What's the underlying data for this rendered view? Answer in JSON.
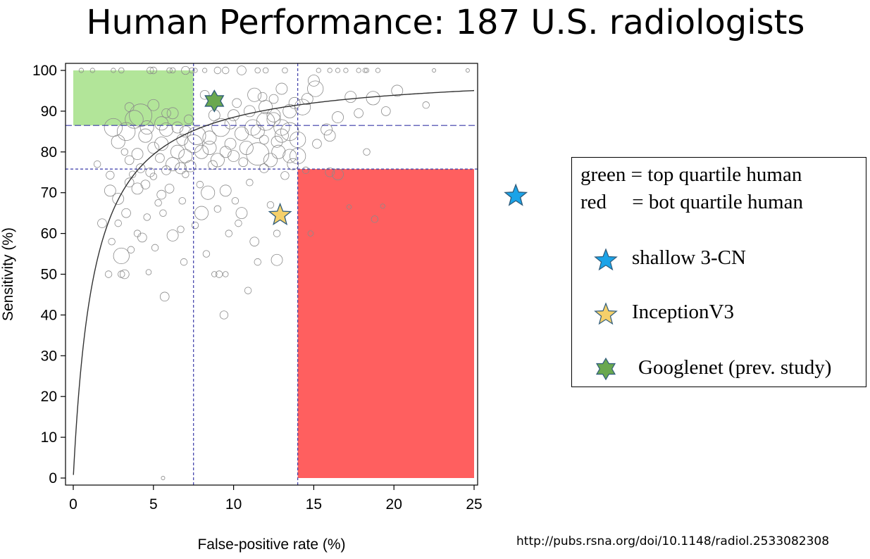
{
  "title": "Human Performance:  187 U.S. radiologists",
  "source": "http://pubs.rsna.org/doi/10.1148/radiol.2533082308",
  "legend": {
    "green_line": "green = top quartile human",
    "red_line": "red     = bot quartile human",
    "items": [
      {
        "label": "shallow 3-CN",
        "color": "#1aa3e8",
        "icon": "star-5-icon"
      },
      {
        "label": "InceptionV3",
        "color": "#f5d06a",
        "icon": "star-5-icon"
      },
      {
        "label": "Googlenet (prev. study)",
        "color": "#6aa84f",
        "icon": "star-6-icon"
      }
    ]
  },
  "chart_data": {
    "type": "scatter",
    "xlabel": "False-positive rate (%)",
    "ylabel": "Sensitivity (%)",
    "xlim": [
      0,
      25
    ],
    "ylim": [
      0,
      100
    ],
    "xticks": [
      0,
      5,
      10,
      15,
      20,
      25
    ],
    "yticks": [
      0,
      10,
      20,
      30,
      40,
      50,
      60,
      70,
      80,
      90,
      100
    ],
    "colors": {
      "top_quartile": "#b2e599",
      "bottom_quartile": "#ff5f5f",
      "guide": "#3a3aa8",
      "curve": "#333333"
    },
    "top_quartile_region": {
      "x": [
        0,
        7.5
      ],
      "y": [
        86.5,
        100
      ]
    },
    "bottom_quartile_region": {
      "x": [
        14,
        25
      ],
      "y": [
        0,
        75.8
      ]
    },
    "reference_lines": {
      "vertical": [
        7.5,
        14
      ],
      "horizontal": [
        86.5,
        75.8
      ]
    },
    "roc_curve_scale": 1.3,
    "models": [
      {
        "name": "shallow 3-CN",
        "x": 27.6,
        "y": 69.2,
        "color": "#1aa3e8",
        "shape": "star5"
      },
      {
        "name": "InceptionV3",
        "x": 12.9,
        "y": 64.5,
        "color": "#f5d06a",
        "shape": "star5"
      },
      {
        "name": "Googlenet (prev. study)",
        "x": 8.8,
        "y": 92.5,
        "color": "#6aa84f",
        "shape": "star6"
      }
    ],
    "radiologists": [
      [
        0.5,
        100,
        1
      ],
      [
        2.5,
        100,
        1
      ],
      [
        3,
        100,
        1.2
      ],
      [
        4.8,
        100,
        1.5
      ],
      [
        5,
        100,
        1.5
      ],
      [
        6,
        100,
        1.2
      ],
      [
        6.2,
        100,
        1.2
      ],
      [
        7,
        100,
        1.8
      ],
      [
        7.4,
        100,
        1.2
      ],
      [
        7.6,
        100,
        1
      ],
      [
        9,
        100,
        1.5
      ],
      [
        9.5,
        100,
        1.5
      ],
      [
        10.5,
        100,
        2
      ],
      [
        11.5,
        100,
        1.2
      ],
      [
        12,
        100,
        1.2
      ],
      [
        15.3,
        100,
        1
      ],
      [
        16,
        100,
        1
      ],
      [
        17,
        100,
        1
      ],
      [
        17.8,
        100,
        1
      ],
      [
        18.2,
        100,
        1
      ],
      [
        18.3,
        100,
        1
      ],
      [
        22.5,
        100,
        0.8
      ],
      [
        24.6,
        100,
        0.8
      ],
      [
        15,
        97.5,
        2.5
      ],
      [
        15.1,
        95.5,
        3.5
      ],
      [
        11.3,
        94,
        3
      ],
      [
        12.5,
        93,
        2
      ],
      [
        17.3,
        93.5,
        2.5
      ],
      [
        18.7,
        93.2,
        3
      ],
      [
        13.8,
        92,
        2.5
      ],
      [
        8.2,
        94,
        2
      ],
      [
        5,
        91.5,
        2.5
      ],
      [
        6.2,
        89.5,
        2.5
      ],
      [
        4.2,
        89,
        5
      ],
      [
        3.8,
        88,
        4
      ],
      [
        5.5,
        87,
        3
      ],
      [
        4.6,
        86,
        3
      ],
      [
        3.3,
        85,
        4
      ],
      [
        5.8,
        85.5,
        3
      ],
      [
        6.5,
        86,
        2.5
      ],
      [
        7,
        85,
        2.5
      ],
      [
        7.7,
        84,
        4
      ],
      [
        8.5,
        83.5,
        3
      ],
      [
        9.2,
        86,
        4
      ],
      [
        9.8,
        87,
        2.5
      ],
      [
        10.5,
        84.5,
        3
      ],
      [
        11.2,
        86,
        3.5
      ],
      [
        11.5,
        85,
        3
      ],
      [
        12,
        87.5,
        4
      ],
      [
        12.5,
        88,
        3
      ],
      [
        13,
        86,
        3.5
      ],
      [
        13.5,
        85,
        4
      ],
      [
        13,
        84,
        3
      ],
      [
        14,
        83,
        3.5
      ],
      [
        12.5,
        89,
        3
      ],
      [
        12,
        91,
        3
      ],
      [
        13.5,
        90,
        3
      ],
      [
        14.3,
        91,
        3.5
      ],
      [
        10,
        89,
        2.5
      ],
      [
        11,
        90,
        2.5
      ],
      [
        15.8,
        85.5,
        2.5
      ],
      [
        16.5,
        88.5,
        2.5
      ],
      [
        16,
        84,
        2.5
      ],
      [
        22,
        91.5,
        1.5
      ],
      [
        18.3,
        80,
        1.5
      ],
      [
        2.5,
        86,
        4
      ],
      [
        2.8,
        82.5,
        3
      ],
      [
        4.5,
        84,
        3
      ],
      [
        5,
        81,
        2.5
      ],
      [
        5.5,
        82,
        3
      ],
      [
        6.5,
        80,
        3
      ],
      [
        7,
        79,
        3
      ],
      [
        7.5,
        82,
        4
      ],
      [
        8,
        80,
        3
      ],
      [
        8.5,
        81,
        3
      ],
      [
        9,
        78,
        3
      ],
      [
        9.5,
        80,
        2.5
      ],
      [
        10,
        79,
        2.5
      ],
      [
        10.8,
        81,
        3
      ],
      [
        11.5,
        79.5,
        5
      ],
      [
        12.3,
        78,
        3
      ],
      [
        12.8,
        80,
        3
      ],
      [
        13.5,
        79,
        3
      ],
      [
        13.7,
        77,
        2.5
      ],
      [
        14,
        79,
        3.5
      ],
      [
        6.2,
        77,
        3
      ],
      [
        6.7,
        76,
        2.5
      ],
      [
        7.3,
        76.5,
        2.5
      ],
      [
        3.5,
        78,
        2
      ],
      [
        3.2,
        80,
        1.5
      ],
      [
        4.2,
        76,
        2
      ],
      [
        1.5,
        77,
        1.5
      ],
      [
        4.8,
        75,
        2
      ],
      [
        5.8,
        75.5,
        2
      ],
      [
        7,
        74.5,
        1.5
      ],
      [
        3.5,
        72.5,
        2
      ],
      [
        4,
        71,
        2.5
      ],
      [
        2.3,
        70.5,
        2.5
      ],
      [
        5.5,
        69.5,
        2
      ],
      [
        8.4,
        70,
        3
      ],
      [
        9.5,
        70.5,
        2.5
      ],
      [
        11,
        72.5,
        1.5
      ],
      [
        16,
        75,
        2
      ],
      [
        16.5,
        74.5,
        2.5
      ],
      [
        14.5,
        75.5,
        1.5
      ],
      [
        4.5,
        72,
        2
      ],
      [
        5,
        74,
        1.5
      ],
      [
        2.8,
        68.5,
        2.5
      ],
      [
        3.3,
        65,
        2
      ],
      [
        5.3,
        67.5,
        1.5
      ],
      [
        1.8,
        62.5,
        2
      ],
      [
        2.8,
        62.5,
        1.5
      ],
      [
        4,
        60,
        1.5
      ],
      [
        8,
        65,
        3
      ],
      [
        9,
        66,
        1.5
      ],
      [
        10.5,
        65,
        2.5
      ],
      [
        6.7,
        61,
        1.5
      ],
      [
        6.2,
        59.5,
        2.5
      ],
      [
        4.3,
        59,
        2
      ],
      [
        9.7,
        60,
        1.5
      ],
      [
        11.3,
        58,
        2
      ],
      [
        12.7,
        60,
        1.5
      ],
      [
        14.8,
        60,
        1.2
      ],
      [
        17.2,
        66.5,
        1
      ],
      [
        18.8,
        63.5,
        1.5
      ],
      [
        19.3,
        66.7,
        1
      ],
      [
        3,
        54.5,
        3.5
      ],
      [
        12.7,
        53.5,
        2.5
      ],
      [
        2.2,
        50,
        1.5
      ],
      [
        3,
        50,
        1.5
      ],
      [
        3.2,
        50,
        2
      ],
      [
        4.7,
        50.5,
        1.2
      ],
      [
        8.8,
        50,
        1.2
      ],
      [
        9.1,
        50,
        1.5
      ],
      [
        9.5,
        50,
        1.2
      ],
      [
        5.7,
        44.5,
        2
      ],
      [
        9.4,
        40,
        1.8
      ],
      [
        5.6,
        0,
        0.8
      ],
      [
        1.2,
        100,
        1
      ],
      [
        8.2,
        100,
        1
      ],
      [
        13.2,
        100,
        1.2
      ],
      [
        16.5,
        100,
        1
      ],
      [
        19,
        100,
        1
      ],
      [
        3.5,
        91,
        2
      ],
      [
        5.8,
        89.5,
        2
      ],
      [
        7.2,
        88,
        2
      ],
      [
        8.8,
        89,
        2.5
      ],
      [
        10.2,
        92,
        2
      ],
      [
        11.8,
        93.5,
        2
      ],
      [
        13,
        95.5,
        2.5
      ],
      [
        14.6,
        93,
        2.5
      ],
      [
        20.2,
        95,
        2.5
      ],
      [
        19.5,
        90,
        2
      ],
      [
        17.8,
        89.5,
        2
      ],
      [
        6.8,
        83,
        2.5
      ],
      [
        9.8,
        82,
        2.5
      ],
      [
        11.9,
        83,
        2
      ],
      [
        12.7,
        82.5,
        2.5
      ],
      [
        15.2,
        82,
        2
      ],
      [
        4,
        79.5,
        2.5
      ],
      [
        5.4,
        78.5,
        2
      ],
      [
        8.7,
        76.8,
        2
      ],
      [
        10.6,
        77.5,
        2
      ],
      [
        11.9,
        76,
        2
      ],
      [
        13.2,
        74.2,
        1.8
      ],
      [
        2.3,
        74.3,
        1.8
      ],
      [
        3.7,
        74.5,
        1.5
      ],
      [
        6,
        71,
        2
      ],
      [
        6.8,
        68,
        1.5
      ],
      [
        7.9,
        72,
        1.5
      ],
      [
        10.1,
        68,
        1.5
      ],
      [
        12.3,
        67,
        1.5
      ],
      [
        4.6,
        64,
        1.5
      ],
      [
        5.6,
        65,
        1.5
      ],
      [
        7.6,
        62,
        1.5
      ],
      [
        10.3,
        62.5,
        1.5
      ],
      [
        3.6,
        56,
        1.5
      ],
      [
        2.4,
        58,
        1.5
      ],
      [
        5.1,
        56.5,
        1.5
      ],
      [
        8.3,
        55,
        1.5
      ],
      [
        6.9,
        53,
        1.5
      ],
      [
        11.5,
        53,
        1.5
      ],
      [
        10.9,
        46,
        1.5
      ]
    ]
  }
}
